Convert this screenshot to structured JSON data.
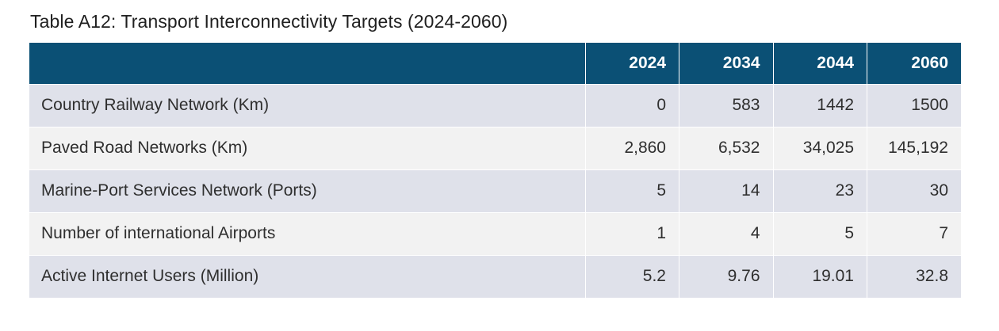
{
  "caption": "Table A12: Transport Interconnectivity Targets (2024-2060)",
  "table": {
    "corner_label": "",
    "years": [
      "2024",
      "2034",
      "2044",
      "2060"
    ],
    "rows": [
      {
        "label": "Country Railway Network (Km)",
        "values": [
          "0",
          "583",
          "1442",
          "1500"
        ]
      },
      {
        "label": "Paved Road Networks (Km)",
        "values": [
          "2,860",
          "6,532",
          "34,025",
          "145,192"
        ]
      },
      {
        "label": "Marine-Port Services Network (Ports)",
        "values": [
          "5",
          "14",
          "23",
          "30"
        ]
      },
      {
        "label": "Number of international Airports",
        "values": [
          "1",
          "4",
          "5",
          "7"
        ]
      },
      {
        "label": "Active Internet Users (Million)",
        "values": [
          "5.2",
          "9.76",
          "19.01",
          "32.8"
        ]
      }
    ]
  },
  "colors": {
    "header_bg": "#0b5075",
    "row_odd": "#dfe1ea",
    "row_even": "#f2f2f2"
  }
}
